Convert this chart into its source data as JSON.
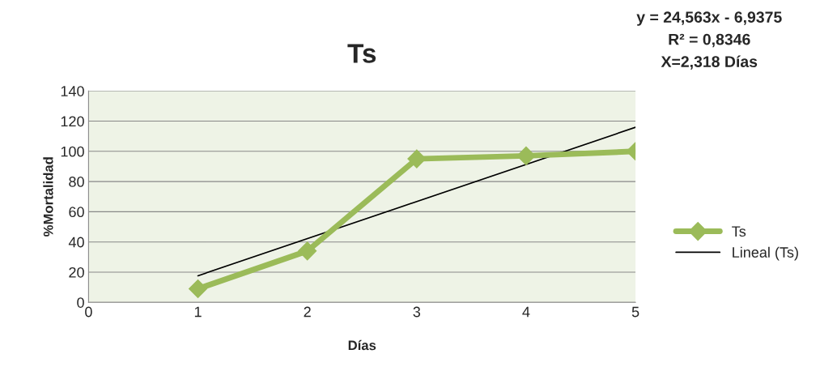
{
  "chart_data": {
    "type": "line",
    "title": "Ts",
    "xlabel": "Días",
    "ylabel": "%Mortalidad",
    "x": [
      1,
      2,
      3,
      4,
      5
    ],
    "series": [
      {
        "name": "Ts",
        "color": "#9bbb59",
        "values": [
          9,
          34,
          95,
          97,
          100
        ],
        "marker": "diamond",
        "line_style": "solid"
      },
      {
        "name": "Lineal (Ts)",
        "color": "#000000",
        "x": [
          1,
          5
        ],
        "values": [
          17.6,
          115.9
        ],
        "marker": "none",
        "line_style": "solid"
      }
    ],
    "xlim": [
      0,
      5
    ],
    "xticks": [
      0,
      1,
      2,
      3,
      4,
      5
    ],
    "ylim": [
      0,
      140
    ],
    "yticks": [
      0,
      20,
      40,
      60,
      80,
      100,
      120,
      140
    ],
    "grid": "y",
    "legend": "right",
    "annotations": [
      "y = 24,563x - 6,9375",
      "R² = 0,8346",
      "X=2,318 Días"
    ]
  }
}
